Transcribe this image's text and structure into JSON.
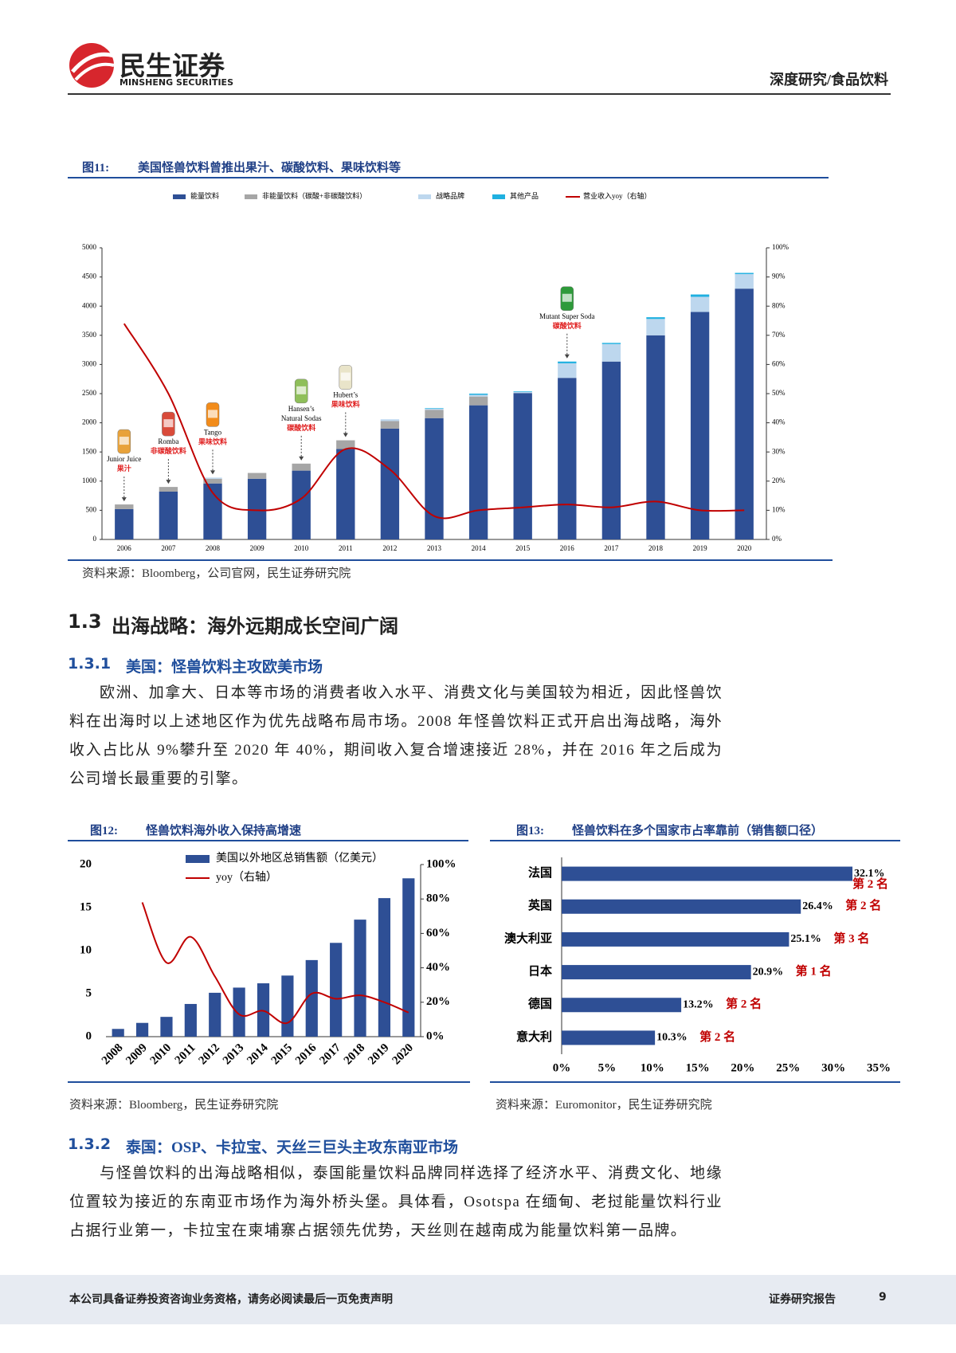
{
  "header": {
    "logo_cn": "民生证券",
    "logo_en": "MINSHENG SECURITIES",
    "category": "深度研究/食品饮料"
  },
  "chart_data": [
    {
      "type": "bar",
      "stacked": true,
      "figure": "图11:",
      "title": "美国怪兽饮料曾推出果汁、碳酸饮料、果味饮料等",
      "categories": [
        "2006",
        "2007",
        "2008",
        "2009",
        "2010",
        "2011",
        "2012",
        "2013",
        "2014",
        "2015",
        "2016",
        "2017",
        "2018",
        "2019",
        "2020"
      ],
      "series": [
        {
          "name": "能量饮料",
          "color": "#2e4f95",
          "values": [
            520,
            820,
            960,
            1040,
            1180,
            1550,
            1900,
            2080,
            2300,
            2510,
            2770,
            3050,
            3500,
            3900,
            4300
          ]
        },
        {
          "name": "非能量饮料（碳酸+非碳酸饮料）",
          "color": "#a6a6a6",
          "values": [
            80,
            80,
            80,
            100,
            120,
            150,
            130,
            140,
            150,
            0,
            0,
            0,
            0,
            0,
            0
          ]
        },
        {
          "name": "战略品牌",
          "color": "#bdd7ee",
          "values": [
            0,
            0,
            20,
            0,
            0,
            0,
            30,
            20,
            30,
            20,
            250,
            300,
            280,
            260,
            250
          ]
        },
        {
          "name": "其他产品",
          "color": "#1fb0e0",
          "values": [
            0,
            0,
            0,
            0,
            0,
            0,
            0,
            10,
            20,
            10,
            30,
            20,
            30,
            40,
            20
          ]
        },
        {
          "name": "营业收入yoy（右轴）",
          "color": "#c00000",
          "type": "line",
          "axis": "y2",
          "values": [
            74,
            50,
            16,
            10,
            14,
            31,
            24,
            8,
            10,
            11,
            12,
            11,
            13,
            10,
            10
          ]
        }
      ],
      "ylim": [
        0,
        5000
      ],
      "yticks": [
        0,
        500,
        1000,
        1500,
        2000,
        2500,
        3000,
        3500,
        4000,
        4500,
        5000
      ],
      "y2lim": [
        0,
        100
      ],
      "y2ticks": [
        {
          "value": 0,
          "label": "0%"
        },
        {
          "value": 10,
          "label": "10%"
        },
        {
          "value": 20,
          "label": "20%"
        },
        {
          "value": 30,
          "label": "30%"
        },
        {
          "value": 40,
          "label": "40%"
        },
        {
          "value": 50,
          "label": "50%"
        },
        {
          "value": 60,
          "label": "60%"
        },
        {
          "value": 70,
          "label": "70%"
        },
        {
          "value": 80,
          "label": "80%"
        },
        {
          "value": 90,
          "label": "90%"
        },
        {
          "value": 100,
          "label": "100%"
        }
      ],
      "annotations": [
        {
          "x": "2006",
          "name": [
            "Junior Juice"
          ],
          "label": "果汁"
        },
        {
          "x": "2007",
          "name": [
            "Romba"
          ],
          "label": "非碳酸饮料"
        },
        {
          "x": "2008",
          "name": [
            "Tango"
          ],
          "label": "果味饮料"
        },
        {
          "x": "2010",
          "name": [
            "Hansen’s",
            "Natural Sodas"
          ],
          "label": "碳酸饮料"
        },
        {
          "x": "2011",
          "name": [
            "Hubert’s"
          ],
          "label": "果味饮料"
        },
        {
          "x": "2016",
          "name": [
            "Mutant Super Soda"
          ],
          "label": "碳酸饮料"
        }
      ],
      "source": "资料来源：Bloomberg，公司官网，民生证券研究院"
    },
    {
      "type": "bar",
      "figure": "图12:",
      "title": "怪兽饮料海外收入保持高增速",
      "categories": [
        "2008",
        "2009",
        "2010",
        "2011",
        "2012",
        "2013",
        "2014",
        "2015",
        "2016",
        "2017",
        "2018",
        "2019",
        "2020"
      ],
      "series": [
        {
          "name": "美国以外地区总销售额（亿美元）",
          "color": "#2e4f95",
          "values": [
            0.9,
            1.6,
            2.3,
            3.8,
            5.1,
            5.7,
            6.2,
            7.1,
            8.9,
            10.9,
            13.6,
            16.1,
            18.4
          ]
        },
        {
          "name": "yoy（右轴）",
          "color": "#c00000",
          "type": "line",
          "axis": "y2",
          "values": [
            null,
            78,
            43,
            58,
            35,
            13,
            15,
            8,
            25,
            22,
            24,
            20,
            14
          ]
        }
      ],
      "ylim": [
        0,
        20
      ],
      "yticks": [
        0,
        5,
        10,
        15,
        20
      ],
      "y2lim": [
        0,
        100
      ],
      "y2ticks": [
        {
          "value": 0,
          "label": "0%"
        },
        {
          "value": 20,
          "label": "20%"
        },
        {
          "value": 40,
          "label": "40%"
        },
        {
          "value": 60,
          "label": "60%"
        },
        {
          "value": 80,
          "label": "80%"
        },
        {
          "value": 100,
          "label": "100%"
        }
      ],
      "source": "资料来源：Bloomberg，民生证券研究院"
    },
    {
      "type": "barh",
      "figure": "图13:",
      "title": "怪兽饮料在多个国家市占率靠前（销售额口径）",
      "categories": [
        "法国",
        "英国",
        "澳大利亚",
        "日本",
        "德国",
        "意大利"
      ],
      "values": [
        32.1,
        26.4,
        25.1,
        20.9,
        13.2,
        10.3
      ],
      "value_labels": [
        "32.1%",
        "26.4%",
        "25.1%",
        "20.9%",
        "13.2%",
        "10.3%"
      ],
      "rank_labels": [
        "第 2 名",
        "第 2 名",
        "第 3 名",
        "第 1 名",
        "第 2 名",
        "第 2 名"
      ],
      "color": "#2e4f95",
      "xlim": [
        0,
        35
      ],
      "xticks": [
        {
          "value": 0,
          "label": "0%"
        },
        {
          "value": 5,
          "label": "5%"
        },
        {
          "value": 10,
          "label": "10%"
        },
        {
          "value": 15,
          "label": "15%"
        },
        {
          "value": 20,
          "label": "20%"
        },
        {
          "value": 25,
          "label": "25%"
        },
        {
          "value": 30,
          "label": "30%"
        },
        {
          "value": 35,
          "label": "35%"
        }
      ],
      "source": "资料来源：Euromonitor，民生证券研究院"
    }
  ],
  "section": {
    "number": "1.3",
    "title": "出海战略：海外远期成长空间广阔"
  },
  "subsections": [
    {
      "number": "1.3.1",
      "title": "美国：怪兽饮料主攻欧美市场",
      "paragraph": "欧洲、加拿大、日本等市场的消费者收入水平、消费文化与美国较为相近，因此怪兽饮料在出海时以上述地区作为优先战略布局市场。2008 年怪兽饮料正式开启出海战略，海外收入占比从 9%攀升至 2020 年 40%，期间收入复合增速接近 28%，并在 2016 年之后成为公司增长最重要的引擎。"
    },
    {
      "number": "1.3.2",
      "title": "泰国：OSP、卡拉宝、天丝三巨头主攻东南亚市场",
      "paragraph": "与怪兽饮料的出海战略相似，泰国能量饮料品牌同样选择了经济水平、消费文化、地缘位置较为接近的东南亚市场作为海外桥头堡。具体看，Osotspa 在缅甸、老挝能量饮料行业占据行业第一，卡拉宝在柬埔寨占据领先优势，天丝则在越南成为能量饮料第一品牌。"
    }
  ],
  "footer": {
    "disclaimer": "本公司具备证券投资咨询业务资格，请务必阅读最后一页免责声明",
    "report_type": "证券研究报告",
    "page": 9
  }
}
